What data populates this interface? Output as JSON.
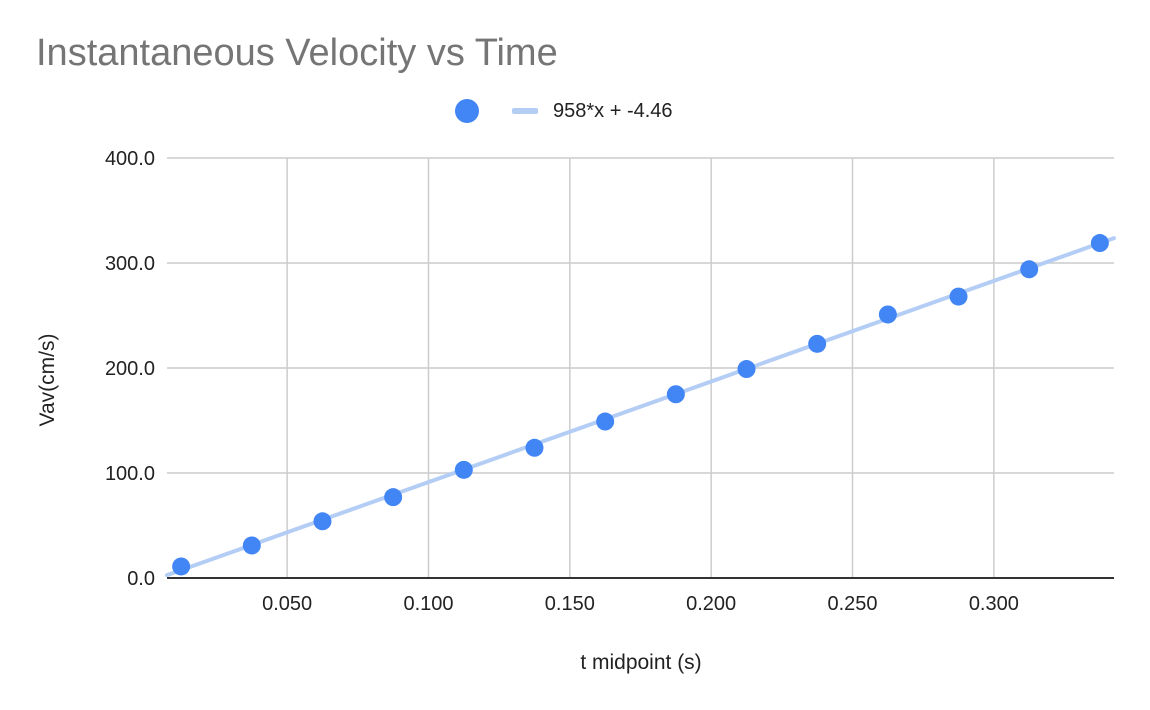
{
  "chart_data": {
    "type": "scatter",
    "title": "Instantaneous Velocity vs Time",
    "xlabel": "t midpoint (s)",
    "ylabel": "Vav(cm/s)",
    "xlim": [
      0.0075,
      0.3425
    ],
    "ylim": [
      0,
      400
    ],
    "x_ticks": [
      "0.050",
      "0.100",
      "0.150",
      "0.200",
      "0.250",
      "0.300"
    ],
    "y_ticks": [
      "0.0",
      "100.0",
      "200.0",
      "300.0",
      "400.0"
    ],
    "x_tick_values": [
      0.05,
      0.1,
      0.15,
      0.2,
      0.25,
      0.3
    ],
    "y_tick_values": [
      0,
      100,
      200,
      300,
      400
    ],
    "grid": true,
    "legend_position": "top",
    "series": [
      {
        "color": "#4285f4",
        "points": [
          [
            0.0125,
            11
          ],
          [
            0.0375,
            31
          ],
          [
            0.0625,
            54
          ],
          [
            0.0875,
            77
          ],
          [
            0.1125,
            103
          ],
          [
            0.1375,
            124
          ],
          [
            0.1625,
            149
          ],
          [
            0.1875,
            175
          ],
          [
            0.2125,
            199
          ],
          [
            0.2375,
            223
          ],
          [
            0.2625,
            251
          ],
          [
            0.2875,
            268
          ],
          [
            0.3125,
            294
          ],
          [
            0.3375,
            319
          ]
        ]
      }
    ],
    "trendline": {
      "label": "958*x + -4.46",
      "slope": 958,
      "intercept": -4.46,
      "color": "#b3cdf5"
    }
  }
}
